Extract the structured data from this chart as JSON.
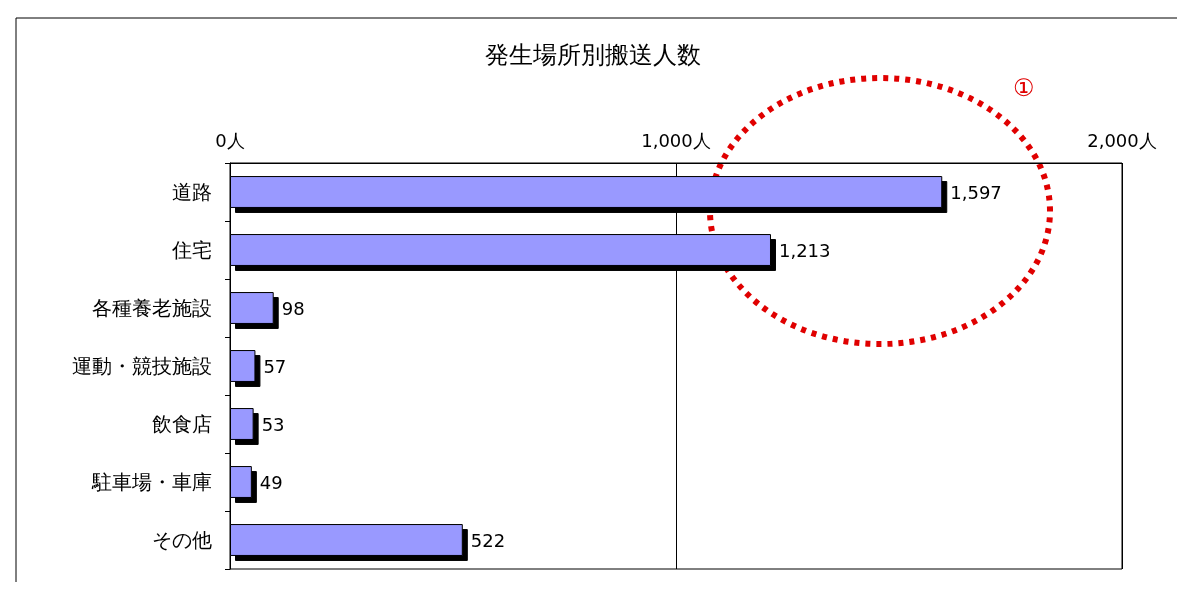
{
  "chart_data": {
    "type": "bar",
    "orientation": "horizontal",
    "title": "発生場所別搬送人数",
    "categories": [
      "道路",
      "住宅",
      "各種養老施設",
      "運動・競技施設",
      "飲食店",
      "駐車場・車庫",
      "その他"
    ],
    "values": [
      1597,
      1213,
      98,
      57,
      53,
      49,
      522
    ],
    "value_labels": [
      "1,597",
      "1,213",
      "98",
      "57",
      "53",
      "49",
      "522"
    ],
    "color": "#9999ff",
    "xlim": [
      0,
      2000
    ],
    "xticks": [
      {
        "value": 0,
        "label": "0人"
      },
      {
        "value": 1000,
        "label": "1,000人"
      },
      {
        "value": 2000,
        "label": "2,000人"
      }
    ],
    "grid": "x",
    "annotations": [
      "①"
    ]
  }
}
